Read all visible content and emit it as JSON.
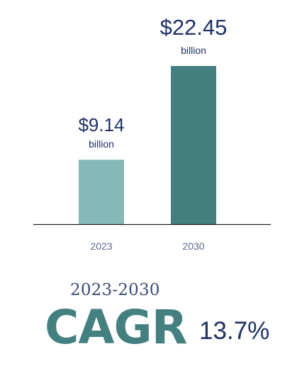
{
  "chart_data": {
    "type": "bar",
    "categories": [
      "2023",
      "2030"
    ],
    "values": [
      9.14,
      22.45
    ],
    "data_labels": [
      "$9.14",
      "$22.45"
    ],
    "unit_label": "billion",
    "colors": [
      "#84b9ba",
      "#437f7f"
    ],
    "title": "",
    "xlabel": "",
    "ylabel": "",
    "grid": false
  },
  "cagr": {
    "period": "2023-2030",
    "label": "CAGR",
    "value": "13.7%",
    "label_color": "#43807f",
    "value_color": "#1f3166"
  }
}
